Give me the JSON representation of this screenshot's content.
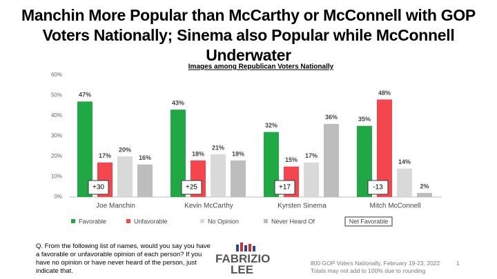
{
  "chart_data": {
    "type": "bar",
    "title": "Manchin More Popular than McCarthy or McConnell with GOP Voters Nationally; Sinema also Popular while McConnell Underwater",
    "subtitle": "Images among Republican Voters Nationally",
    "categories": [
      "Joe Manchin",
      "Kevin McCarthy",
      "Kyrsten Sinema",
      "Mitch McConnell"
    ],
    "series": [
      {
        "name": "Favorable",
        "color": "#20a845",
        "values": [
          47,
          43,
          32,
          35
        ],
        "value_labels": [
          "47%",
          "43%",
          "32%",
          "35%"
        ]
      },
      {
        "name": "Unfavorable",
        "color": "#f4474d",
        "values": [
          17,
          18,
          15,
          48
        ],
        "value_labels": [
          "17%",
          "18%",
          "15%",
          "48%"
        ]
      },
      {
        "name": "No Opinion",
        "color": "#d9d9d9",
        "values": [
          20,
          21,
          17,
          14
        ],
        "value_labels": [
          "20%",
          "21%",
          "17%",
          "14%"
        ]
      },
      {
        "name": "Never Heard Of",
        "color": "#bdbdbd",
        "values": [
          16,
          18,
          36,
          2
        ],
        "value_labels": [
          "16%",
          "18%",
          "36%",
          "2%"
        ]
      }
    ],
    "net_favorable": {
      "name": "Net Favorable",
      "values": [
        30,
        25,
        17,
        -13
      ],
      "value_labels": [
        "+30",
        "+25",
        "+17",
        "-13"
      ]
    },
    "ylim": [
      0,
      60
    ],
    "yticks": [
      {
        "value": 0,
        "label": "0%"
      },
      {
        "value": 10,
        "label": "10%"
      },
      {
        "value": 20,
        "label": "20%"
      },
      {
        "value": 30,
        "label": "30%"
      },
      {
        "value": 40,
        "label": "40%"
      },
      {
        "value": 50,
        "label": "50%"
      },
      {
        "value": 60,
        "label": "60%"
      }
    ],
    "grid": false,
    "legend": "bottom"
  },
  "footer": {
    "question": "Q. From the following list of names, would you say you have a favorable or unfavorable opinion of each person? If you have no opinion or have never heard of the person, just indicate that.",
    "logo": [
      "FABRIZIO",
      "LEE"
    ],
    "notes": [
      "800 GOP Voters Nationally, February 19-23, 2022",
      "Totals may not add to 100% due to rounding"
    ],
    "page": "1"
  }
}
